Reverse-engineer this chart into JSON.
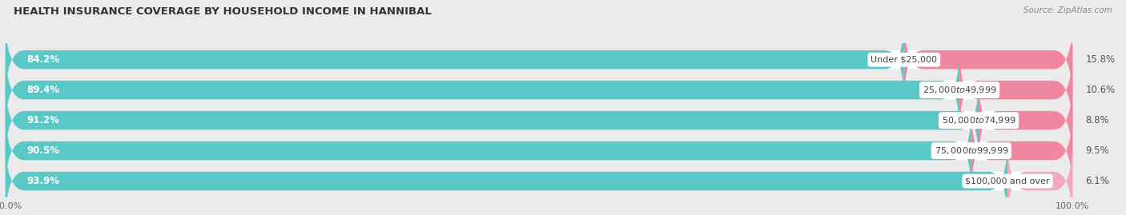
{
  "title": "HEALTH INSURANCE COVERAGE BY HOUSEHOLD INCOME IN HANNIBAL",
  "source": "Source: ZipAtlas.com",
  "categories": [
    "Under $25,000",
    "$25,000 to $49,999",
    "$50,000 to $74,999",
    "$75,000 to $99,999",
    "$100,000 and over"
  ],
  "with_coverage": [
    84.2,
    89.4,
    91.2,
    90.5,
    93.9
  ],
  "without_coverage": [
    15.8,
    10.6,
    8.8,
    9.5,
    6.1
  ],
  "color_coverage": "#5bc8c8",
  "color_no_coverage": "#f087a0",
  "color_no_coverage_last": "#f4a8bf",
  "bar_height": 0.62,
  "background_color": "#ebebeb",
  "bar_background": "#ffffff",
  "title_fontsize": 9.5,
  "label_fontsize": 8.5,
  "tick_fontsize": 8,
  "legend_fontsize": 8.5,
  "xlim": [
    0,
    100
  ]
}
